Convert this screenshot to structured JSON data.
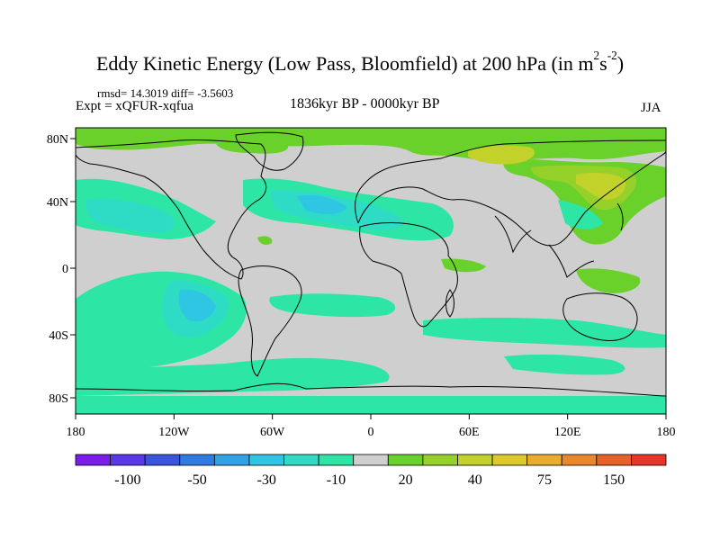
{
  "title": {
    "prefix": "Eddy Kinetic Energy (Low Pass, Bloomfield) at 200 hPa (in m",
    "sup1": "2",
    "mid": "s",
    "sup2": "-2",
    "suffix": ")"
  },
  "stats": "rmsd= 14.3019 diff= -3.5603",
  "experiment": "Expt = xQFUR-xqfua",
  "period": "1836kyr BP - 0000kyr BP",
  "season": "JJA",
  "y_ticks": [
    "80N",
    "40N",
    "0",
    "40S",
    "80S"
  ],
  "x_ticks": [
    "180",
    "120W",
    "60W",
    "0",
    "60E",
    "120E",
    "180"
  ],
  "colorbar": {
    "colors": [
      "#7b1cec",
      "#5a37e8",
      "#3a54e0",
      "#2f7be3",
      "#2ea4e6",
      "#2ec6e2",
      "#2edcc6",
      "#2de6a6",
      "#cfcfcf",
      "#6ad12a",
      "#96d12a",
      "#c2d22a",
      "#ddc92a",
      "#e8ad2a",
      "#e8882a",
      "#e8612a",
      "#e8342a"
    ],
    "labels": [
      "-100",
      "-50",
      "-30",
      "-10",
      "20",
      "40",
      "75",
      "150"
    ]
  }
}
